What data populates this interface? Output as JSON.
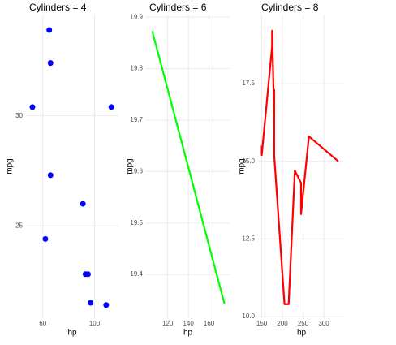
{
  "chart_data": [
    {
      "type": "scatter",
      "title": "Cylinders = 4",
      "x_label": "hp",
      "y_label": "mpg",
      "color": "#0000ff",
      "x": [
        93,
        62,
        95,
        66,
        52,
        65,
        97,
        66,
        91,
        113,
        109
      ],
      "y": [
        22.8,
        24.4,
        22.8,
        32.4,
        30.4,
        33.9,
        21.5,
        27.3,
        26.0,
        30.4,
        21.4
      ],
      "xlim": [
        47,
        118.5
      ],
      "ylim": [
        20.8,
        34.6
      ],
      "xticks": [
        60,
        100
      ],
      "yticks": [
        25,
        30
      ],
      "grid": true
    },
    {
      "type": "line",
      "title": "Cylinders = 6",
      "x_label": "hp",
      "y_label": "mpg",
      "color": "#00ff00",
      "x": [
        105,
        175
      ],
      "y": [
        19.873,
        19.343
      ],
      "xlim": [
        99,
        180
      ],
      "ylim": [
        19.315,
        19.905
      ],
      "xticks": [
        120,
        140,
        160
      ],
      "yticks": [
        19.4,
        19.5,
        19.6,
        19.7,
        19.8,
        19.9
      ],
      "grid": true
    },
    {
      "type": "line",
      "title": "Cylinders = 8",
      "x_label": "hp",
      "y_label": "mpg",
      "color": "#ff0000",
      "x": [
        150,
        150,
        175,
        175,
        180,
        180,
        180,
        205,
        215,
        230,
        245,
        245,
        264,
        335
      ],
      "y": [
        15.5,
        15.2,
        18.7,
        19.2,
        16.4,
        17.3,
        15.2,
        10.4,
        10.4,
        14.7,
        14.3,
        13.3,
        15.8,
        15.0
      ],
      "xlim": [
        141,
        351
      ],
      "ylim": [
        9.95,
        19.72
      ],
      "xticks": [
        150,
        200,
        250,
        300
      ],
      "yticks": [
        {
          "value": 10,
          "label": "10.0"
        },
        {
          "value": 12.5,
          "label": "12.5"
        },
        {
          "value": 15,
          "label": "15.0"
        },
        {
          "value": 17.5,
          "label": "17.5"
        }
      ],
      "grid": true
    }
  ]
}
